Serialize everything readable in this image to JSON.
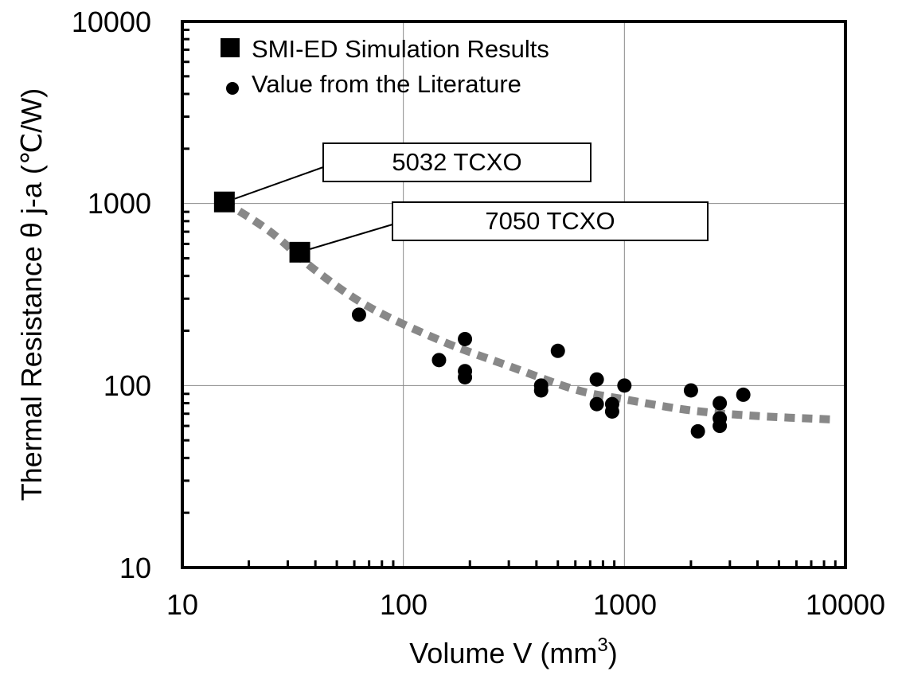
{
  "chart_data": {
    "type": "scatter",
    "xlabel": "Volume V (mm",
    "xlabel_sup": "3",
    "xlabel_tail": ")",
    "ylabel": "Thermal Resistance   θ j-a (℃/W)",
    "xscale": "log",
    "yscale": "log",
    "xlim": [
      10,
      10000
    ],
    "ylim": [
      10,
      10000
    ],
    "x_ticks": [
      "10",
      "100",
      "1000",
      "10000"
    ],
    "y_ticks": [
      "10",
      "100",
      "1000",
      "10000"
    ],
    "grid": true,
    "legend_position": "top-left",
    "series": [
      {
        "name": "SMI-ED Simulation Results",
        "marker": "square",
        "color": "#000000",
        "points": [
          {
            "x": 15.5,
            "y": 1020
          },
          {
            "x": 34,
            "y": 540
          }
        ]
      },
      {
        "name": "Value from the Literature",
        "marker": "circle",
        "color": "#000000",
        "points": [
          {
            "x": 63,
            "y": 245
          },
          {
            "x": 145,
            "y": 138
          },
          {
            "x": 190,
            "y": 180
          },
          {
            "x": 190,
            "y": 120
          },
          {
            "x": 190,
            "y": 111
          },
          {
            "x": 420,
            "y": 100
          },
          {
            "x": 420,
            "y": 94
          },
          {
            "x": 500,
            "y": 155
          },
          {
            "x": 750,
            "y": 108
          },
          {
            "x": 750,
            "y": 79
          },
          {
            "x": 880,
            "y": 79
          },
          {
            "x": 880,
            "y": 72
          },
          {
            "x": 1000,
            "y": 100
          },
          {
            "x": 2000,
            "y": 94
          },
          {
            "x": 2150,
            "y": 56
          },
          {
            "x": 2700,
            "y": 80
          },
          {
            "x": 2700,
            "y": 66
          },
          {
            "x": 2700,
            "y": 60
          },
          {
            "x": 3450,
            "y": 89
          }
        ]
      }
    ],
    "trend": {
      "color": "#888888",
      "style": "dotted",
      "points": [
        {
          "x": 15.5,
          "y": 1020
        },
        {
          "x": 25,
          "y": 700
        },
        {
          "x": 40,
          "y": 430
        },
        {
          "x": 70,
          "y": 270
        },
        {
          "x": 150,
          "y": 175
        },
        {
          "x": 300,
          "y": 128
        },
        {
          "x": 600,
          "y": 95
        },
        {
          "x": 1000,
          "y": 84
        },
        {
          "x": 2000,
          "y": 73
        },
        {
          "x": 4000,
          "y": 68
        },
        {
          "x": 9000,
          "y": 65
        }
      ]
    },
    "annotations": [
      {
        "label": "5032 TCXO",
        "target": {
          "x": 15.5,
          "y": 1020
        }
      },
      {
        "label": "7050 TCXO",
        "target": {
          "x": 34,
          "y": 540
        }
      }
    ]
  }
}
